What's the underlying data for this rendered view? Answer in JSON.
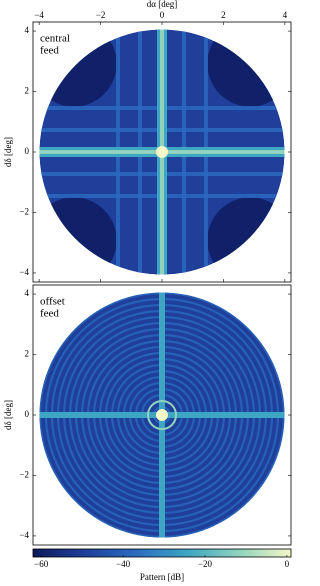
{
  "chart_data": [
    {
      "type": "heatmap",
      "xlabel": "dα [deg]",
      "ylabel": "dδ [deg]",
      "annotation": [
        "central",
        "feed"
      ],
      "xlim": [
        -4.2,
        4.2
      ],
      "ylim": [
        -4.3,
        4.3
      ],
      "xticks": [
        {
          "value": -4,
          "label": "−4"
        },
        {
          "value": -2,
          "label": "−2"
        },
        0,
        2,
        4
      ],
      "yticks": [
        {
          "value": -4,
          "label": "−4"
        },
        {
          "value": -2,
          "label": "−2"
        },
        0,
        2,
        4
      ]
    },
    {
      "type": "heatmap",
      "ylabel": "dδ [deg]",
      "annotation": [
        "offset",
        "feed"
      ],
      "xlim": [
        -4.2,
        4.2
      ],
      "ylim": [
        -4.3,
        4.3
      ],
      "yticks": [
        {
          "value": -4,
          "label": "−4"
        },
        {
          "value": -2,
          "label": "−2"
        },
        0,
        2,
        4
      ]
    },
    {
      "type": "colorbar",
      "label": "Pattern [dB]",
      "lim": [
        -62,
        1
      ],
      "ticks": [
        {
          "value": -60,
          "label": "−60"
        },
        {
          "value": -40,
          "label": "−40"
        },
        {
          "value": -20,
          "label": "−20"
        },
        0
      ],
      "colormap": [
        "#0c1a5c",
        "#1f3f9a",
        "#2a6cc0",
        "#3ea6c3",
        "#8fd3bd",
        "#f6f7c6"
      ]
    }
  ]
}
